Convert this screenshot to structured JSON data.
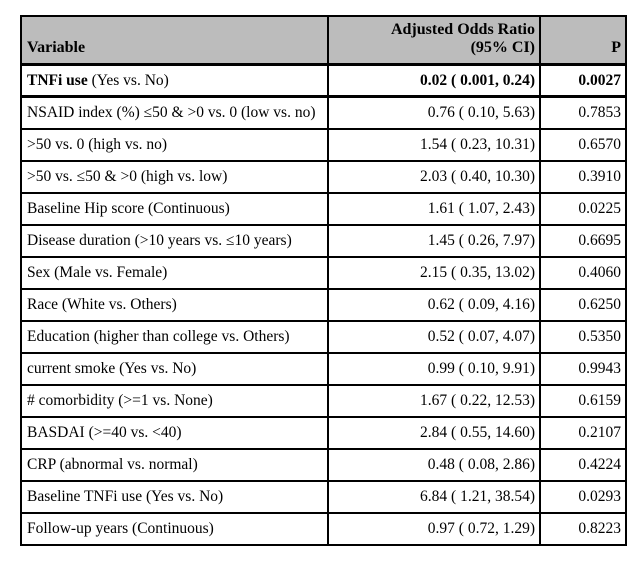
{
  "table": {
    "header": {
      "variable": "Variable",
      "odds_ratio": "Adjusted Odds Ratio (95% CI)",
      "p": "P",
      "background_color": "#bcbcbc",
      "border_color": "#000000"
    },
    "rows": [
      {
        "name_bold": "TNFi use",
        "name": " (Yes vs. No)",
        "odds_ratio": "0.02 ( 0.001, 0.24)",
        "p": "0.0027",
        "emphasis": true
      },
      {
        "name": "NSAID index (%) ≤50 & >0 vs. 0 (low vs. no)",
        "odds_ratio": "0.76 ( 0.10, 5.63)",
        "p": "0.7853",
        "emphasis": false
      },
      {
        "name": ">50 vs. 0 (high vs. no)",
        "odds_ratio": "1.54 ( 0.23, 10.31)",
        "p": "0.6570",
        "emphasis": false
      },
      {
        "name": ">50 vs. ≤50 & >0 (high vs. low)",
        "odds_ratio": "2.03 ( 0.40, 10.30)",
        "p": "0.3910",
        "emphasis": false
      },
      {
        "name": "Baseline Hip score (Continuous)",
        "odds_ratio": "1.61 ( 1.07, 2.43)",
        "p": "0.0225",
        "emphasis": false
      },
      {
        "name": "Disease duration (>10 years vs. ≤10 years)",
        "odds_ratio": "1.45 ( 0.26, 7.97)",
        "p": "0.6695",
        "emphasis": false
      },
      {
        "name": "Sex (Male vs. Female)",
        "odds_ratio": "2.15 ( 0.35, 13.02)",
        "p": "0.4060",
        "emphasis": false
      },
      {
        "name": "Race (White vs. Others)",
        "odds_ratio": "0.62 ( 0.09, 4.16)",
        "p": "0.6250",
        "emphasis": false
      },
      {
        "name": "Education (higher than college vs. Others)",
        "odds_ratio": "0.52 ( 0.07, 4.07)",
        "p": "0.5350",
        "emphasis": false
      },
      {
        "name": "current smoke (Yes vs. No)",
        "odds_ratio": "0.99 ( 0.10, 9.91)",
        "p": "0.9943",
        "emphasis": false
      },
      {
        "name": "# comorbidity (>=1 vs. None)",
        "odds_ratio": "1.67 ( 0.22, 12.53)",
        "p": "0.6159",
        "emphasis": false
      },
      {
        "name": "BASDAI (>=40 vs. <40)",
        "odds_ratio": "2.84 ( 0.55, 14.60)",
        "p": "0.2107",
        "emphasis": false
      },
      {
        "name": "CRP (abnormal vs. normal)",
        "odds_ratio": "0.48 ( 0.08, 2.86)",
        "p": "0.4224",
        "emphasis": false
      },
      {
        "name": "Baseline TNFi use (Yes vs. No)",
        "odds_ratio": "6.84 ( 1.21, 38.54)",
        "p": "0.0293",
        "emphasis": false
      },
      {
        "name": "Follow-up years (Continuous)",
        "odds_ratio": "0.97 ( 0.72, 1.29)",
        "p": "0.8223",
        "emphasis": false
      }
    ]
  }
}
